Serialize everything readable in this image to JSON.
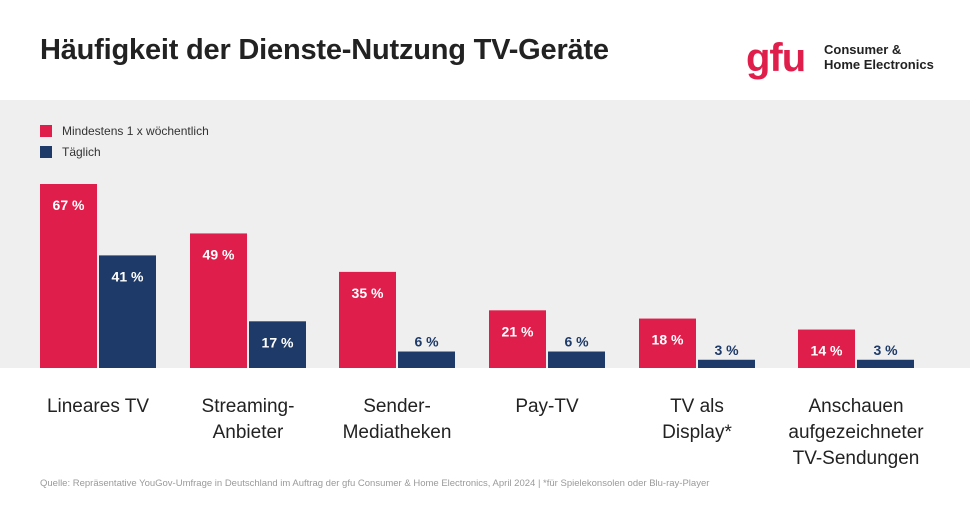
{
  "title": "Häufigkeit der Dienste-Nutzung TV-Geräte",
  "logo": {
    "mark": "gfu",
    "line1": "Consumer &",
    "line2": "Home Electronics"
  },
  "source": "Quelle: Repräsentative YouGov-Umfrage in Deutschland im Auftrag der gfu Consumer & Home Electronics, April 2024 | *für Spielekonsolen oder Blu-ray-Player",
  "colors": {
    "weekly": "#e01e4b",
    "daily": "#1e3a68",
    "panel": "#efefef"
  },
  "chart_data": {
    "type": "bar",
    "categories": [
      "Lineares TV",
      "Streaming-\nAnbieter",
      "Sender-\nMediatheken",
      "Pay-TV",
      "TV als\nDisplay*",
      "Anschauen\naufgezeichneter\nTV-Sendungen"
    ],
    "series": [
      {
        "name": "Mindestens 1 x wöchentlich",
        "values": [
          67,
          49,
          35,
          21,
          18,
          14
        ],
        "labels": [
          "67 %",
          "49 %",
          "35 %",
          "21 %",
          "18 %",
          "14 %"
        ]
      },
      {
        "name": "Täglich",
        "values": [
          41,
          17,
          6,
          6,
          3,
          3
        ],
        "labels": [
          "41 %",
          "17 %",
          "6 %",
          "6 %",
          "3 %",
          "3 %"
        ]
      }
    ],
    "ylim": [
      0,
      67
    ],
    "grid": false,
    "legend": "top-left"
  }
}
